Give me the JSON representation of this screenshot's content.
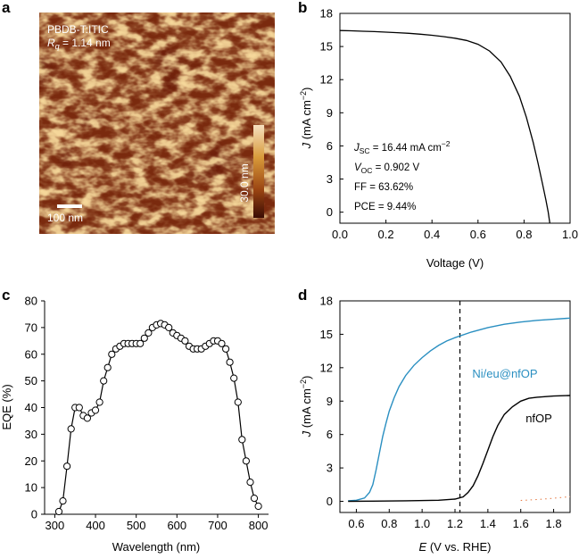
{
  "panel_letters": [
    "a",
    "b",
    "c",
    "d"
  ],
  "colors": {
    "blue": "#2a8fc1",
    "black": "#000000",
    "orange": "#e4733a",
    "afm_dark": "#5a1a0a",
    "afm_light": "#f5d79a"
  },
  "afm": {
    "material": "PBDB-T:ITIC",
    "rq_symbol": "R",
    "rq_sub": "q",
    "rq_value": " = 1.14 nm",
    "scalebar_label": "100 nm",
    "colorbar_label": "30.0 nm"
  },
  "chart_data": [
    {
      "id": "b",
      "type": "line",
      "xlabel": "Voltage (V)",
      "ylabel_symbol": "J",
      "ylabel_unit": " (mA cm",
      "ylabel_exp": "−2",
      "ylabel_close": ")",
      "xlim": [
        0,
        1.0
      ],
      "ylim": [
        -1,
        18
      ],
      "xticks": [
        "0.0",
        "0.2",
        "0.4",
        "0.6",
        "0.8",
        "1.0"
      ],
      "yticks": [
        "0",
        "3",
        "6",
        "9",
        "12",
        "15",
        "18"
      ],
      "series": [
        {
          "name": "J-V",
          "x": [
            0.0,
            0.05,
            0.1,
            0.15,
            0.2,
            0.25,
            0.3,
            0.35,
            0.4,
            0.45,
            0.5,
            0.55,
            0.6,
            0.65,
            0.7,
            0.74,
            0.78,
            0.81,
            0.84,
            0.86,
            0.88,
            0.895,
            0.905,
            0.912
          ],
          "y": [
            16.45,
            16.42,
            16.38,
            16.35,
            16.3,
            16.25,
            16.2,
            16.12,
            16.02,
            15.9,
            15.75,
            15.55,
            15.2,
            14.6,
            13.6,
            12.3,
            10.5,
            8.6,
            6.3,
            4.5,
            2.6,
            1.1,
            0.0,
            -1.0
          ]
        }
      ],
      "annotations": [
        {
          "sym": "J",
          "sub": "SC",
          "rest": " = 16.44 mA cm",
          "sup": "−2"
        },
        {
          "sym": "V",
          "sub": "OC",
          "rest": " = 0.902 V",
          "sup": ""
        },
        {
          "sym": "",
          "sub": "",
          "rest": "FF = 63.62%",
          "sup": ""
        },
        {
          "sym": "",
          "sub": "",
          "rest": "PCE = 9.44%",
          "sup": ""
        }
      ]
    },
    {
      "id": "c",
      "type": "line",
      "xlabel": "Wavelength (nm)",
      "ylabel": "EQE (%)",
      "xlim": [
        275,
        825
      ],
      "ylim": [
        0,
        80
      ],
      "xticks": [
        "300",
        "400",
        "500",
        "600",
        "700",
        "800"
      ],
      "yticks": [
        "0",
        "10",
        "20",
        "30",
        "40",
        "50",
        "60",
        "70",
        "80"
      ],
      "series": [
        {
          "name": "EQE",
          "x": [
            310,
            320,
            330,
            340,
            350,
            360,
            370,
            380,
            390,
            400,
            410,
            420,
            430,
            440,
            450,
            460,
            470,
            480,
            490,
            500,
            510,
            520,
            530,
            540,
            550,
            560,
            570,
            580,
            590,
            600,
            610,
            620,
            630,
            640,
            650,
            660,
            670,
            680,
            690,
            700,
            710,
            720,
            730,
            740,
            750,
            760,
            770,
            780,
            790,
            800
          ],
          "y": [
            1,
            5,
            18,
            32,
            40,
            40,
            37,
            36,
            38,
            39,
            42,
            50,
            55,
            60,
            62,
            63,
            64,
            64,
            64,
            64,
            64,
            66,
            68,
            70,
            71,
            71.5,
            71,
            70,
            68,
            67,
            66,
            65,
            63,
            62,
            62,
            62,
            63,
            64,
            65,
            65,
            64,
            62,
            57,
            51,
            42,
            28,
            20,
            12,
            6,
            3
          ]
        }
      ]
    },
    {
      "id": "d",
      "type": "line",
      "xlabel_symbol": "E",
      "xlabel_rest": " (V vs. RHE)",
      "ylabel_symbol": "J",
      "ylabel_unit": " (mA cm",
      "ylabel_exp": "−2",
      "ylabel_close": ")",
      "xlim": [
        0.5,
        1.9
      ],
      "ylim": [
        -1,
        18
      ],
      "xticks": [
        "0.6",
        "0.8",
        "1.0",
        "1.2",
        "1.4",
        "1.6",
        "1.8"
      ],
      "yticks": [
        "0",
        "3",
        "6",
        "9",
        "12",
        "15",
        "18"
      ],
      "dashed_line_x": 1.23,
      "series": [
        {
          "name": "Ni/eu@nfOP",
          "x": [
            0.55,
            0.6,
            0.65,
            0.68,
            0.7,
            0.72,
            0.74,
            0.76,
            0.78,
            0.8,
            0.83,
            0.86,
            0.9,
            0.95,
            1.0,
            1.05,
            1.1,
            1.15,
            1.2,
            1.3,
            1.4,
            1.5,
            1.6,
            1.7,
            1.8,
            1.9
          ],
          "y": [
            0.05,
            0.1,
            0.3,
            0.8,
            1.5,
            2.8,
            4.3,
            5.8,
            7.0,
            8.1,
            9.3,
            10.3,
            11.3,
            12.2,
            12.9,
            13.5,
            14.0,
            14.4,
            14.7,
            15.2,
            15.6,
            15.9,
            16.1,
            16.25,
            16.35,
            16.45
          ]
        },
        {
          "name": "nfOP",
          "x": [
            0.55,
            0.7,
            0.9,
            1.1,
            1.2,
            1.25,
            1.28,
            1.31,
            1.34,
            1.37,
            1.4,
            1.43,
            1.46,
            1.5,
            1.55,
            1.6,
            1.65,
            1.7,
            1.8,
            1.9
          ],
          "y": [
            0.0,
            0.02,
            0.05,
            0.1,
            0.2,
            0.4,
            0.8,
            1.4,
            2.3,
            3.4,
            4.6,
            5.8,
            6.8,
            7.8,
            8.5,
            9.0,
            9.25,
            9.35,
            9.45,
            9.5
          ]
        },
        {
          "name": "dark",
          "x": [
            1.6,
            1.65,
            1.7,
            1.75,
            1.8,
            1.85,
            1.9
          ],
          "y": [
            0.08,
            0.12,
            0.16,
            0.22,
            0.28,
            0.35,
            0.42
          ]
        }
      ],
      "labels": [
        {
          "series": "Ni/eu@nfOP",
          "text": "Ni/eu@nfOP"
        },
        {
          "series": "nfOP",
          "text": "nfOP"
        }
      ]
    }
  ]
}
